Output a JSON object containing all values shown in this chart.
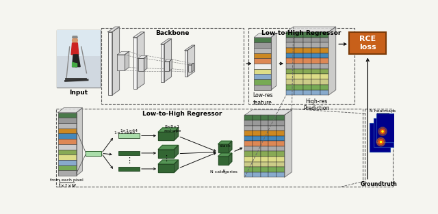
{
  "bg_color": "#f5f5f0",
  "rce_box_color": "#c8601a",
  "rce_text": "RCE\nloss",
  "rce_text_color": "#ffffff",
  "backbone_label": "Backbone",
  "lhr_label_top": "Low-to-High Regressor",
  "lhr_label_bottom": "Low-to-High Regressor",
  "input_label": "Input",
  "lowres_label": "Low-res\nfeature",
  "highres_label": "High-res\nPrediction",
  "groundtruth_label": "Groundtruth",
  "n_heatmaps_label": "N heatmaps",
  "from_each_pixel": "from each pixel",
  "label_1x1M": "1×1×M",
  "label_1x1conv": "1×1 conv.",
  "label_1x1x64": "1×1×64",
  "label_8x8x1": "8×8×1",
  "label_reshape": "reshape",
  "label_stack": "stack",
  "label_Ncategories": "N categories",
  "feat_colors_sm": [
    "#4a7a4a",
    "#999999",
    "#b8b8b8",
    "#cc8822",
    "#dd8855",
    "#eeeeee",
    "#dddd88",
    "#88aacc",
    "#77aa55",
    "#aaaaaa"
  ],
  "feat_colors_grid": [
    "#4a7a4a",
    "#999999",
    "#aaaaaa",
    "#cc8822",
    "#4488bb",
    "#dd8855",
    "#aaaaaa",
    "#88aa55",
    "#dddd88",
    "#cccc88",
    "#77aa55",
    "#88aacc"
  ],
  "feat_colors_in": [
    "#4a7a4a",
    "#999999",
    "#b8b8b8",
    "#cc8822",
    "#4488bb",
    "#dd8855",
    "#cccccc",
    "#88aa55",
    "#dddd88",
    "#88aacc",
    "#77aa55",
    "#aaaaaa"
  ],
  "heatmap_bg": "#00008b",
  "heatmap_border": "#2244aa"
}
